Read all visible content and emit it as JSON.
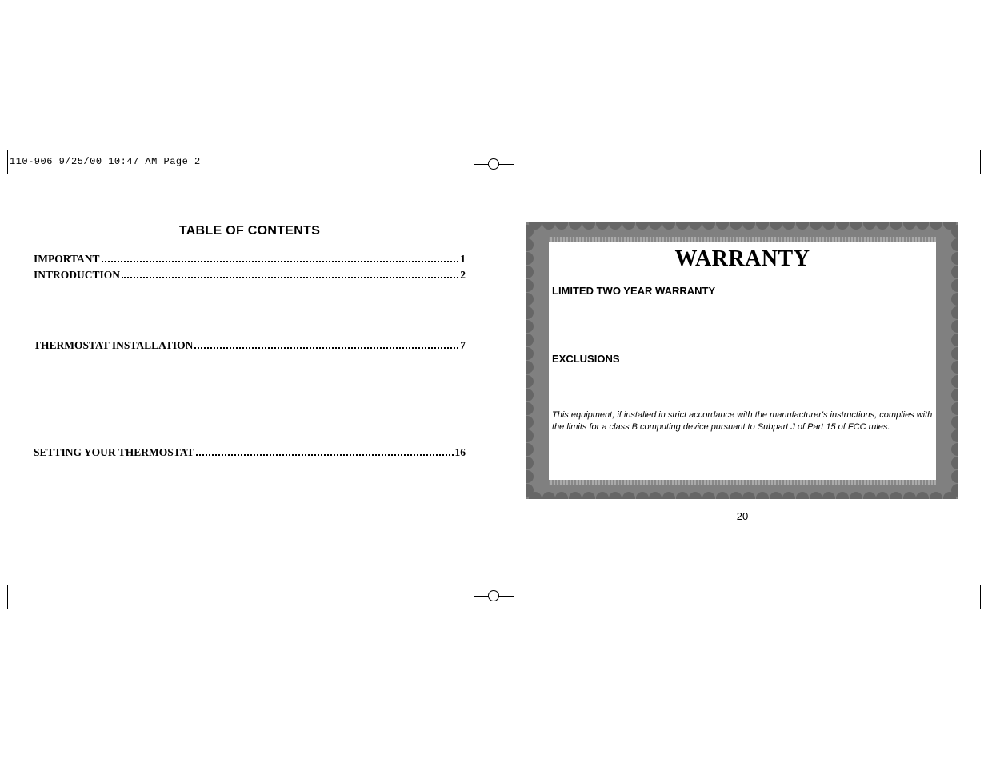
{
  "header": "110-906  9/25/00  10:47 AM  Page 2",
  "toc": {
    "title": "TABLE OF CONTENTS",
    "entries": [
      {
        "label": "IMPORTANT",
        "page": "1"
      },
      {
        "label": "INTRODUCTION",
        "page": "2"
      },
      {
        "label": "THERMOSTAT INSTALLATION",
        "page": "7"
      },
      {
        "label": "SETTING YOUR THERMOSTAT",
        "page": "16"
      }
    ]
  },
  "warranty": {
    "title": "WARRANTY",
    "heading1": "LIMITED TWO YEAR WARRANTY",
    "heading2": "EXCLUSIONS",
    "note": "This equipment, if installed in strict accordance with the manufacturer's instructions, complies with the limits for a class B computing device pursuant to Subpart J of Part 15 of FCC rules."
  },
  "page_number": "20",
  "colors": {
    "text": "#000000",
    "background": "#ffffff",
    "border_fill": "#808080",
    "scallop": "#666666"
  }
}
